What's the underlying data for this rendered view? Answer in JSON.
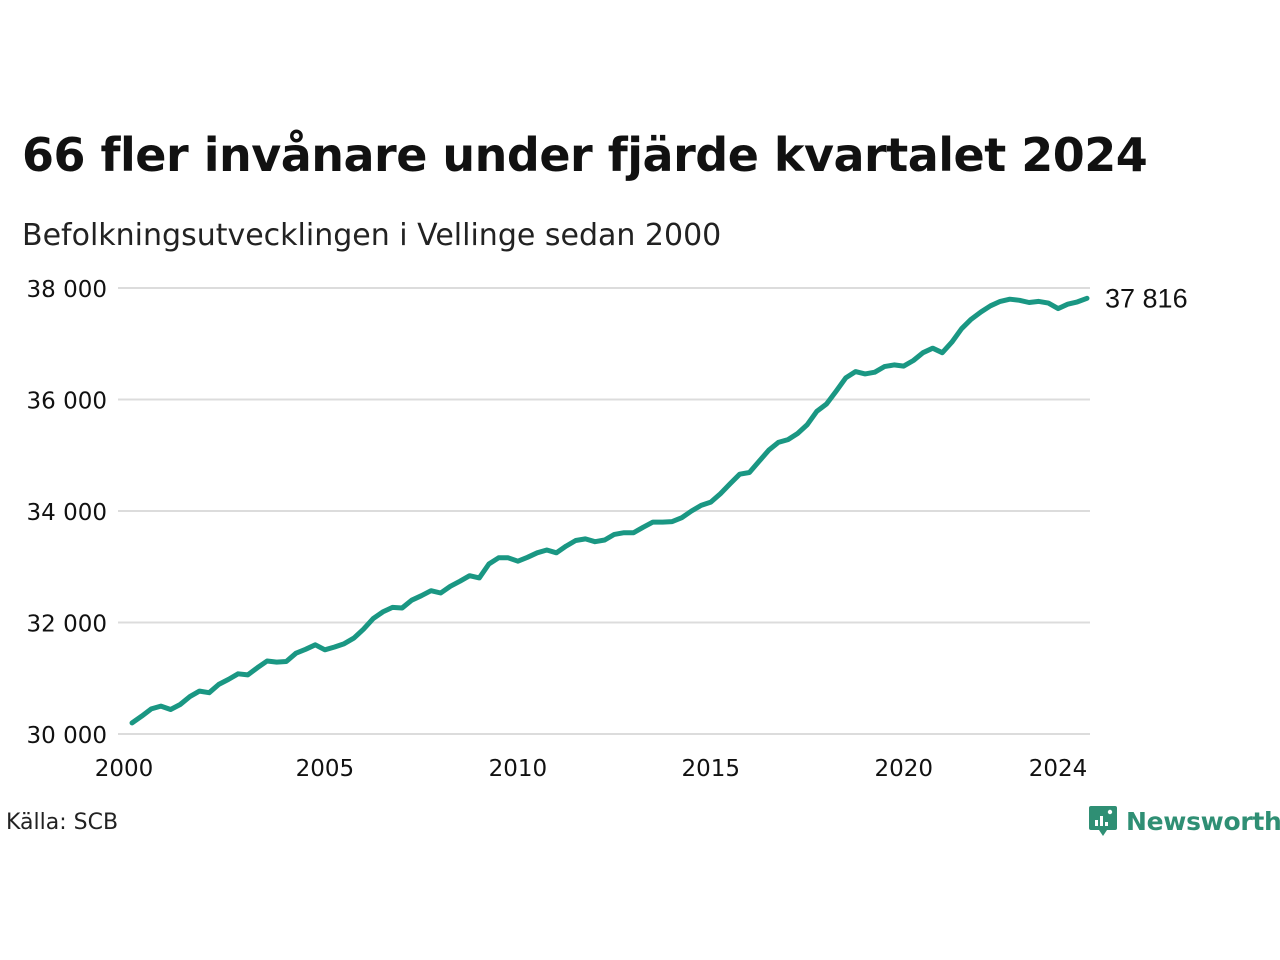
{
  "title": "66 fler invånare under fjärde kvartalet 2024",
  "subtitle": "Befolkningsutvecklingen i Vellinge sedan 2000",
  "source": "Källa: SCB",
  "brand": {
    "name": "Newsworthy",
    "icon": "newsworthy-logo-icon",
    "color": "#2f8f74"
  },
  "chart_data": {
    "type": "line",
    "color": "#1a9783",
    "grid": true,
    "ylim": [
      30000,
      38000
    ],
    "xlim": [
      2000,
      2025
    ],
    "yticks": [
      30000,
      32000,
      34000,
      36000,
      38000
    ],
    "ytick_labels": [
      "30 000",
      "32 000",
      "34 000",
      "36 000",
      "38 000"
    ],
    "xticks": [
      2000,
      2005,
      2010,
      2015,
      2020,
      2024
    ],
    "xtick_labels": [
      "2000",
      "2005",
      "2010",
      "2015",
      "2020",
      "2024"
    ],
    "end_label": "37 816",
    "series": [
      {
        "x": [
          "2000Q1",
          "2000Q2",
          "2000Q3",
          "2000Q4",
          "2001Q1",
          "2001Q2",
          "2001Q3",
          "2001Q4",
          "2002Q1",
          "2002Q2",
          "2002Q3",
          "2002Q4",
          "2003Q1",
          "2003Q2",
          "2003Q3",
          "2003Q4",
          "2004Q1",
          "2004Q2",
          "2004Q3",
          "2004Q4",
          "2005Q1",
          "2005Q2",
          "2005Q3",
          "2005Q4",
          "2006Q1",
          "2006Q2",
          "2006Q3",
          "2006Q4",
          "2007Q1",
          "2007Q2",
          "2007Q3",
          "2007Q4",
          "2008Q1",
          "2008Q2",
          "2008Q3",
          "2008Q4",
          "2009Q1",
          "2009Q2",
          "2009Q3",
          "2009Q4",
          "2010Q1",
          "2010Q2",
          "2010Q3",
          "2010Q4",
          "2011Q1",
          "2011Q2",
          "2011Q3",
          "2011Q4",
          "2012Q1",
          "2012Q2",
          "2012Q3",
          "2012Q4",
          "2013Q1",
          "2013Q2",
          "2013Q3",
          "2013Q4",
          "2014Q1",
          "2014Q2",
          "2014Q3",
          "2014Q4",
          "2015Q1",
          "2015Q2",
          "2015Q3",
          "2015Q4",
          "2016Q1",
          "2016Q2",
          "2016Q3",
          "2016Q4",
          "2017Q1",
          "2017Q2",
          "2017Q3",
          "2017Q4",
          "2018Q1",
          "2018Q2",
          "2018Q3",
          "2018Q4",
          "2019Q1",
          "2019Q2",
          "2019Q3",
          "2019Q4",
          "2020Q1",
          "2020Q2",
          "2020Q3",
          "2020Q4",
          "2021Q1",
          "2021Q2",
          "2021Q3",
          "2021Q4",
          "2022Q1",
          "2022Q2",
          "2022Q3",
          "2022Q4",
          "2023Q1",
          "2023Q2",
          "2023Q3",
          "2023Q4",
          "2024Q1",
          "2024Q2",
          "2024Q3",
          "2024Q4"
        ],
        "values": [
          30200,
          30320,
          30450,
          30500,
          30440,
          30530,
          30670,
          30770,
          30740,
          30890,
          30980,
          31080,
          31060,
          31190,
          31310,
          31290,
          31300,
          31450,
          31520,
          31600,
          31510,
          31560,
          31620,
          31720,
          31880,
          32070,
          32190,
          32270,
          32260,
          32400,
          32480,
          32570,
          32530,
          32650,
          32740,
          32840,
          32800,
          33050,
          33160,
          33160,
          33100,
          33170,
          33250,
          33300,
          33250,
          33370,
          33470,
          33500,
          33450,
          33480,
          33580,
          33610,
          33610,
          33710,
          33800,
          33800,
          33810,
          33880,
          34000,
          34100,
          34160,
          34310,
          34490,
          34660,
          34690,
          34890,
          35090,
          35230,
          35280,
          35390,
          35550,
          35790,
          35920,
          36150,
          36390,
          36500,
          36460,
          36490,
          36590,
          36620,
          36600,
          36700,
          36840,
          36920,
          36840,
          37030,
          37270,
          37440,
          37570,
          37680,
          37760,
          37800,
          37780,
          37740,
          37760,
          37730,
          37630,
          37710,
          37750,
          37816
        ]
      }
    ]
  }
}
